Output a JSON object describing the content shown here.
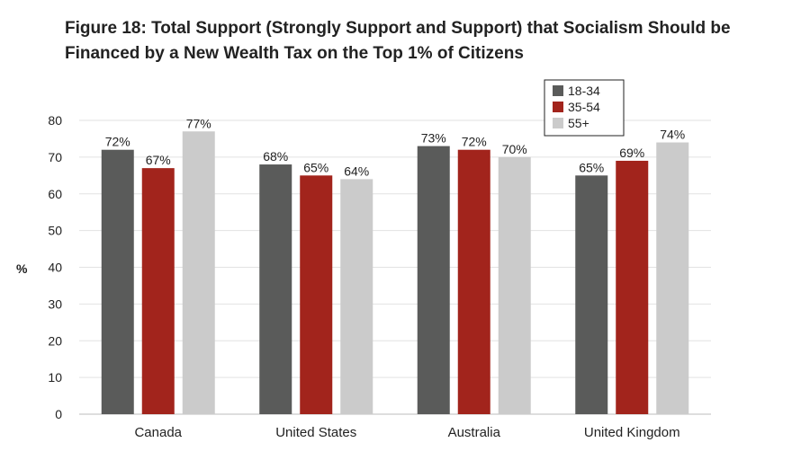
{
  "colors": {
    "18-34": "#5a5b5a",
    "35-54": "#a2241c",
    "55+": "#cbcbcb"
  },
  "chart_data": {
    "type": "bar",
    "title_lines": [
      "Figure 18: Total Support (Strongly Support and Support) that Socialism Should be",
      "Financed by a New Wealth Tax on the Top 1% of Citizens"
    ],
    "xlabel": "",
    "ylabel": "%",
    "ylim": [
      0,
      80
    ],
    "yticks": [
      0,
      10,
      20,
      30,
      40,
      50,
      60,
      70,
      80
    ],
    "grid": true,
    "legend_position": "top-right",
    "categories": [
      "Canada",
      "United States",
      "Australia",
      "United Kingdom"
    ],
    "series": [
      {
        "name": "18-34",
        "values": [
          72,
          68,
          73,
          65
        ],
        "labels": [
          "72%",
          "68%",
          "73%",
          "65%"
        ]
      },
      {
        "name": "35-54",
        "values": [
          67,
          65,
          72,
          69
        ],
        "labels": [
          "67%",
          "65%",
          "72%",
          "69%"
        ]
      },
      {
        "name": "55+",
        "values": [
          77,
          64,
          70,
          74
        ],
        "labels": [
          "77%",
          "64%",
          "70%",
          "74%"
        ]
      }
    ]
  }
}
